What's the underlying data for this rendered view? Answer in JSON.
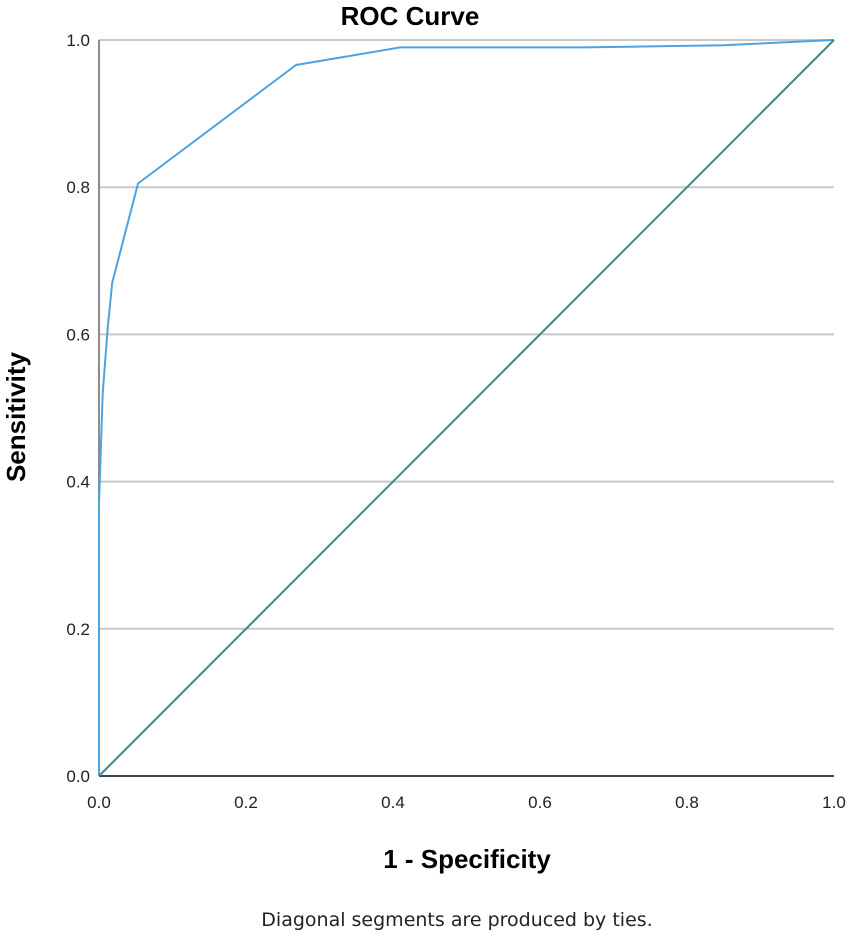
{
  "chart_data": {
    "type": "line",
    "title": "ROC Curve",
    "xlabel": "1 - Specificity",
    "ylabel": "Sensitivity",
    "footnote": "Diagonal segments are produced by ties.",
    "xlim": [
      0,
      1
    ],
    "ylim": [
      0,
      1
    ],
    "x_ticks": [
      "0.0",
      "0.2",
      "0.4",
      "0.6",
      "0.8",
      "1.0"
    ],
    "y_ticks": [
      "0.0",
      "0.2",
      "0.4",
      "0.6",
      "0.8",
      "1.0"
    ],
    "grid": "horizontal",
    "legend": "none",
    "series": [
      {
        "color": "#4da3e0",
        "points": [
          [
            0.0,
            0.0
          ],
          [
            0.0,
            0.37
          ],
          [
            0.005,
            0.52
          ],
          [
            0.012,
            0.61
          ],
          [
            0.018,
            0.67
          ],
          [
            0.053,
            0.805
          ],
          [
            0.268,
            0.966
          ],
          [
            0.41,
            0.99
          ],
          [
            0.66,
            0.99
          ],
          [
            0.85,
            0.993
          ],
          [
            1.0,
            1.0
          ]
        ]
      },
      {
        "color": "#3a8a8a",
        "points": [
          [
            0.0,
            0.0
          ],
          [
            1.0,
            1.0
          ]
        ]
      }
    ]
  }
}
